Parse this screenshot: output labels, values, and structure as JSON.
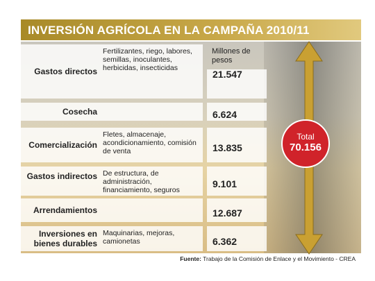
{
  "header": {
    "title": "INVERSIÓN AGRÍCOLA EN LA CAMPAÑA 2010/11",
    "units": "Millones de pesos"
  },
  "rows": [
    {
      "label": "Gastos directos",
      "description": "Fertilizantes, riego, labores, semillas, inoculantes, herbicidas, insecticidas",
      "value": "21.547"
    },
    {
      "label": "Cosecha",
      "value": "6.624"
    },
    {
      "label": "Comercialización",
      "description": "Fletes, almacenaje, acondicionamiento, comisión de venta",
      "value": "13.835"
    },
    {
      "label": "Gastos indirectos",
      "description": "De estructura, de administración, financiamiento, seguros",
      "value": "9.101"
    },
    {
      "label": "Arrendamientos",
      "value": "12.687"
    },
    {
      "label": "Inversiones en bienes durables",
      "description": "Maquinarias, mejoras, camionetas",
      "value": "6.362"
    }
  ],
  "total": {
    "label": "Total",
    "value": "70.156"
  },
  "source": {
    "label": "Fuente:",
    "text": "Trabajo de la Comisión de Enlace y el Movimiento - CREA"
  }
}
